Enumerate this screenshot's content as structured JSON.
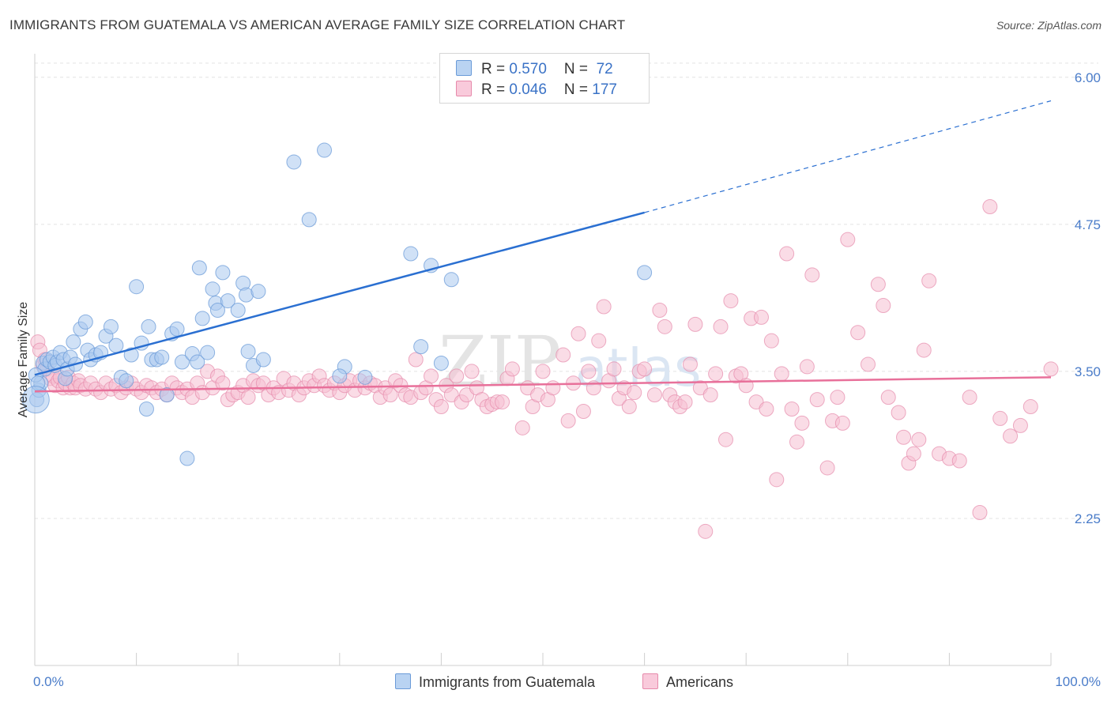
{
  "header": {
    "title": "IMMIGRANTS FROM GUATEMALA VS AMERICAN AVERAGE FAMILY SIZE CORRELATION CHART",
    "source": "Source: ZipAtlas.com"
  },
  "watermark": {
    "zip": "ZIP",
    "atlas": "atlas"
  },
  "legend": {
    "rows": [
      {
        "r_label": "R = ",
        "r_value": "0.570",
        "n_label": "N = ",
        "n_value": " 72"
      },
      {
        "r_label": "R = ",
        "r_value": "0.046",
        "n_label": "N = ",
        "n_value": "177"
      }
    ]
  },
  "bottom_legend": {
    "series1": "Immigrants from Guatemala",
    "series2": "Americans"
  },
  "colors": {
    "blue_fill": "#a9c8ee",
    "blue_stroke": "#6b9bd8",
    "blue_line": "#2a6fd1",
    "pink_fill": "#f6bfd2",
    "pink_stroke": "#e68aab",
    "pink_line": "#e8709a",
    "tick_label": "#4a7cc9"
  },
  "chart_data": {
    "type": "scatter",
    "title": "IMMIGRANTS FROM GUATEMALA VS AMERICAN AVERAGE FAMILY SIZE CORRELATION CHART",
    "xlabel": "",
    "ylabel": "Average Family Size",
    "xlim": [
      0,
      100
    ],
    "ylim": [
      1.0,
      6.2
    ],
    "x_tick_labels": [
      "0.0%",
      "100.0%"
    ],
    "y_ticks": [
      2.25,
      3.5,
      4.75,
      6.0
    ],
    "y_tick_labels": [
      "2.25",
      "3.50",
      "4.75",
      "6.00"
    ],
    "grid": "horizontal dashed",
    "legend_position": "top-center",
    "series": [
      {
        "name": "Immigrants from Guatemala",
        "R": 0.57,
        "N": 72,
        "trend": {
          "x0": 0,
          "y0": 3.47,
          "x1": 60,
          "y1": 4.85,
          "dash_to_x": 100,
          "dash_to_y": 5.8
        },
        "points": [
          [
            0.2,
            3.26
          ],
          [
            0.4,
            3.34
          ],
          [
            0.6,
            3.4
          ],
          [
            0.8,
            3.57
          ],
          [
            1.0,
            3.52
          ],
          [
            1.2,
            3.6
          ],
          [
            1.5,
            3.58
          ],
          [
            1.8,
            3.62
          ],
          [
            2.0,
            3.55
          ],
          [
            2.2,
            3.58
          ],
          [
            2.5,
            3.66
          ],
          [
            2.8,
            3.6
          ],
          [
            3.0,
            3.44
          ],
          [
            3.2,
            3.52
          ],
          [
            3.5,
            3.62
          ],
          [
            3.8,
            3.75
          ],
          [
            4.0,
            3.56
          ],
          [
            4.5,
            3.86
          ],
          [
            5.0,
            3.92
          ],
          [
            5.2,
            3.68
          ],
          [
            5.5,
            3.6
          ],
          [
            6.0,
            3.64
          ],
          [
            6.5,
            3.66
          ],
          [
            7.0,
            3.8
          ],
          [
            7.5,
            3.88
          ],
          [
            8.0,
            3.72
          ],
          [
            8.5,
            3.45
          ],
          [
            9.0,
            3.42
          ],
          [
            9.5,
            3.64
          ],
          [
            10.0,
            4.22
          ],
          [
            10.5,
            3.74
          ],
          [
            11.0,
            3.18
          ],
          [
            11.2,
            3.88
          ],
          [
            11.5,
            3.6
          ],
          [
            12.0,
            3.6
          ],
          [
            12.5,
            3.62
          ],
          [
            13.0,
            3.3
          ],
          [
            13.5,
            3.82
          ],
          [
            14.0,
            3.86
          ],
          [
            14.5,
            3.58
          ],
          [
            15.0,
            2.76
          ],
          [
            15.5,
            3.65
          ],
          [
            16.0,
            3.58
          ],
          [
            16.2,
            4.38
          ],
          [
            16.5,
            3.95
          ],
          [
            17.0,
            3.66
          ],
          [
            17.5,
            4.2
          ],
          [
            17.8,
            4.08
          ],
          [
            18.0,
            4.02
          ],
          [
            18.5,
            4.34
          ],
          [
            19.0,
            4.1
          ],
          [
            20.0,
            4.02
          ],
          [
            20.5,
            4.25
          ],
          [
            20.8,
            4.15
          ],
          [
            21.0,
            3.67
          ],
          [
            21.5,
            3.55
          ],
          [
            22.0,
            4.18
          ],
          [
            22.5,
            3.6
          ],
          [
            28.5,
            5.38
          ],
          [
            25.5,
            5.28
          ],
          [
            27.0,
            4.79
          ],
          [
            30.5,
            3.54
          ],
          [
            30.0,
            3.46
          ],
          [
            32.5,
            3.45
          ],
          [
            37.0,
            4.5
          ],
          [
            38.0,
            3.71
          ],
          [
            39.0,
            4.4
          ],
          [
            40.0,
            3.57
          ],
          [
            41.0,
            4.28
          ],
          [
            60.0,
            4.34
          ],
          [
            0.1,
            3.47
          ],
          [
            0.3,
            3.4
          ]
        ]
      },
      {
        "name": "Americans",
        "R": 0.046,
        "N": 177,
        "trend": {
          "x0": 0,
          "y0": 3.33,
          "x1": 100,
          "y1": 3.45
        },
        "points": [
          [
            0.3,
            3.75
          ],
          [
            0.5,
            3.68
          ],
          [
            0.8,
            3.55
          ],
          [
            1.0,
            3.6
          ],
          [
            1.2,
            3.52
          ],
          [
            1.5,
            3.44
          ],
          [
            1.8,
            3.46
          ],
          [
            2.0,
            3.38
          ],
          [
            2.3,
            3.42
          ],
          [
            2.5,
            3.45
          ],
          [
            2.8,
            3.36
          ],
          [
            3.0,
            3.4
          ],
          [
            3.3,
            3.45
          ],
          [
            3.5,
            3.36
          ],
          [
            3.8,
            3.4
          ],
          [
            4.0,
            3.36
          ],
          [
            4.3,
            3.42
          ],
          [
            4.5,
            3.38
          ],
          [
            5.0,
            3.35
          ],
          [
            5.5,
            3.4
          ],
          [
            6.0,
            3.35
          ],
          [
            6.5,
            3.32
          ],
          [
            7.0,
            3.4
          ],
          [
            7.5,
            3.35
          ],
          [
            8.0,
            3.38
          ],
          [
            8.5,
            3.32
          ],
          [
            9.0,
            3.36
          ],
          [
            9.5,
            3.4
          ],
          [
            10.0,
            3.35
          ],
          [
            10.5,
            3.32
          ],
          [
            11.0,
            3.38
          ],
          [
            11.5,
            3.36
          ],
          [
            12.0,
            3.32
          ],
          [
            12.5,
            3.35
          ],
          [
            13.0,
            3.3
          ],
          [
            13.5,
            3.4
          ],
          [
            14.0,
            3.36
          ],
          [
            14.5,
            3.32
          ],
          [
            15.0,
            3.35
          ],
          [
            15.5,
            3.28
          ],
          [
            16.0,
            3.4
          ],
          [
            16.5,
            3.32
          ],
          [
            17.0,
            3.5
          ],
          [
            17.5,
            3.36
          ],
          [
            18.0,
            3.46
          ],
          [
            18.5,
            3.4
          ],
          [
            19.0,
            3.26
          ],
          [
            19.5,
            3.3
          ],
          [
            20.0,
            3.32
          ],
          [
            20.5,
            3.38
          ],
          [
            21.0,
            3.28
          ],
          [
            21.5,
            3.42
          ],
          [
            22.0,
            3.38
          ],
          [
            22.5,
            3.4
          ],
          [
            23.0,
            3.3
          ],
          [
            23.5,
            3.36
          ],
          [
            24.0,
            3.32
          ],
          [
            24.5,
            3.44
          ],
          [
            25.0,
            3.34
          ],
          [
            25.5,
            3.4
          ],
          [
            26.0,
            3.3
          ],
          [
            26.5,
            3.36
          ],
          [
            27.0,
            3.42
          ],
          [
            27.5,
            3.38
          ],
          [
            28.0,
            3.46
          ],
          [
            28.5,
            3.38
          ],
          [
            29.0,
            3.34
          ],
          [
            29.5,
            3.4
          ],
          [
            30.0,
            3.32
          ],
          [
            30.5,
            3.38
          ],
          [
            31.0,
            3.42
          ],
          [
            31.5,
            3.34
          ],
          [
            32.0,
            3.42
          ],
          [
            32.5,
            3.36
          ],
          [
            33.0,
            3.4
          ],
          [
            33.5,
            3.38
          ],
          [
            34.0,
            3.28
          ],
          [
            34.5,
            3.36
          ],
          [
            35.0,
            3.3
          ],
          [
            35.5,
            3.42
          ],
          [
            36.0,
            3.38
          ],
          [
            36.5,
            3.3
          ],
          [
            37.0,
            3.28
          ],
          [
            37.5,
            3.6
          ],
          [
            38.0,
            3.32
          ],
          [
            38.5,
            3.36
          ],
          [
            39.0,
            3.46
          ],
          [
            39.5,
            3.26
          ],
          [
            40.0,
            3.2
          ],
          [
            40.5,
            3.38
          ],
          [
            41.0,
            3.3
          ],
          [
            41.5,
            3.46
          ],
          [
            42.0,
            3.24
          ],
          [
            42.5,
            3.3
          ],
          [
            43.0,
            3.5
          ],
          [
            43.5,
            3.36
          ],
          [
            44.0,
            3.26
          ],
          [
            44.5,
            3.2
          ],
          [
            45.0,
            3.22
          ],
          [
            45.5,
            3.24
          ],
          [
            46.0,
            3.24
          ],
          [
            46.5,
            3.44
          ],
          [
            47.0,
            3.52
          ],
          [
            48.0,
            3.02
          ],
          [
            48.5,
            3.36
          ],
          [
            49.0,
            3.2
          ],
          [
            49.5,
            3.3
          ],
          [
            50.0,
            3.5
          ],
          [
            50.5,
            3.26
          ],
          [
            51.0,
            3.36
          ],
          [
            52.0,
            3.64
          ],
          [
            52.5,
            3.08
          ],
          [
            53.0,
            3.4
          ],
          [
            53.5,
            3.82
          ],
          [
            54.0,
            3.16
          ],
          [
            54.5,
            3.5
          ],
          [
            55.0,
            3.36
          ],
          [
            55.5,
            3.76
          ],
          [
            56.0,
            4.05
          ],
          [
            56.5,
            3.42
          ],
          [
            57.0,
            3.52
          ],
          [
            57.5,
            3.27
          ],
          [
            58.0,
            3.36
          ],
          [
            58.5,
            3.2
          ],
          [
            59.0,
            3.32
          ],
          [
            59.5,
            3.5
          ],
          [
            60.0,
            3.52
          ],
          [
            61.0,
            3.3
          ],
          [
            61.5,
            4.02
          ],
          [
            62.0,
            3.88
          ],
          [
            62.5,
            3.3
          ],
          [
            63.0,
            3.24
          ],
          [
            63.5,
            3.2
          ],
          [
            64.0,
            3.24
          ],
          [
            64.5,
            3.56
          ],
          [
            65.0,
            3.9
          ],
          [
            65.5,
            3.36
          ],
          [
            66.0,
            2.14
          ],
          [
            66.5,
            3.3
          ],
          [
            67.0,
            3.48
          ],
          [
            67.5,
            3.88
          ],
          [
            68.0,
            2.92
          ],
          [
            68.5,
            4.1
          ],
          [
            69.0,
            3.46
          ],
          [
            69.5,
            3.48
          ],
          [
            70.0,
            3.38
          ],
          [
            70.5,
            3.95
          ],
          [
            71.0,
            3.24
          ],
          [
            71.5,
            3.96
          ],
          [
            72.0,
            3.18
          ],
          [
            72.5,
            3.76
          ],
          [
            73.0,
            2.58
          ],
          [
            73.5,
            3.48
          ],
          [
            74.0,
            4.5
          ],
          [
            74.5,
            3.18
          ],
          [
            75.0,
            2.9
          ],
          [
            75.5,
            3.06
          ],
          [
            76.0,
            3.54
          ],
          [
            76.5,
            4.32
          ],
          [
            77.0,
            3.26
          ],
          [
            78.0,
            2.68
          ],
          [
            78.5,
            3.08
          ],
          [
            79.0,
            3.28
          ],
          [
            79.5,
            3.06
          ],
          [
            80.0,
            4.62
          ],
          [
            81.0,
            3.83
          ],
          [
            82.0,
            3.56
          ],
          [
            83.0,
            4.24
          ],
          [
            83.5,
            4.06
          ],
          [
            84.0,
            3.28
          ],
          [
            85.0,
            3.15
          ],
          [
            85.5,
            2.94
          ],
          [
            86.0,
            2.72
          ],
          [
            86.5,
            2.8
          ],
          [
            87.0,
            2.92
          ],
          [
            87.5,
            3.68
          ],
          [
            88.0,
            4.27
          ],
          [
            89.0,
            2.8
          ],
          [
            90.0,
            2.76
          ],
          [
            91.0,
            2.74
          ],
          [
            92.0,
            3.28
          ],
          [
            93.0,
            2.3
          ],
          [
            94.0,
            4.9
          ],
          [
            95.0,
            3.1
          ],
          [
            96.0,
            2.95
          ],
          [
            97.0,
            3.04
          ],
          [
            98.0,
            3.2
          ],
          [
            100.0,
            3.52
          ]
        ]
      }
    ]
  }
}
